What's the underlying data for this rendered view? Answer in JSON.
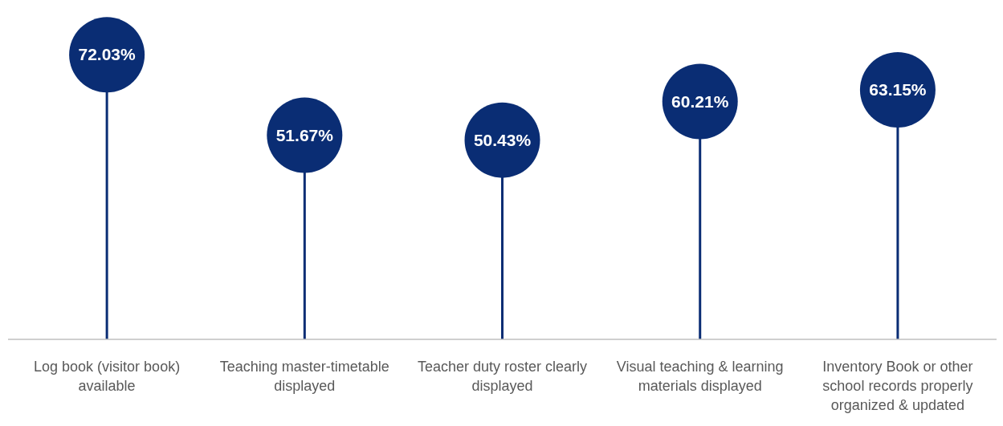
{
  "chart_data": {
    "type": "lollipop",
    "categories": [
      "Log book (visitor book) available",
      "Teaching master-timetable displayed",
      "Teacher duty roster clearly displayed",
      "Visual teaching & learning materials displayed",
      "Inventory Book or other school records properly organized & updated"
    ],
    "values": [
      72.03,
      51.67,
      50.43,
      60.21,
      63.15
    ],
    "value_labels": [
      "72.03%",
      "51.67%",
      "50.43%",
      "60.21%",
      "63.15%"
    ],
    "color": "#0a2d74"
  }
}
